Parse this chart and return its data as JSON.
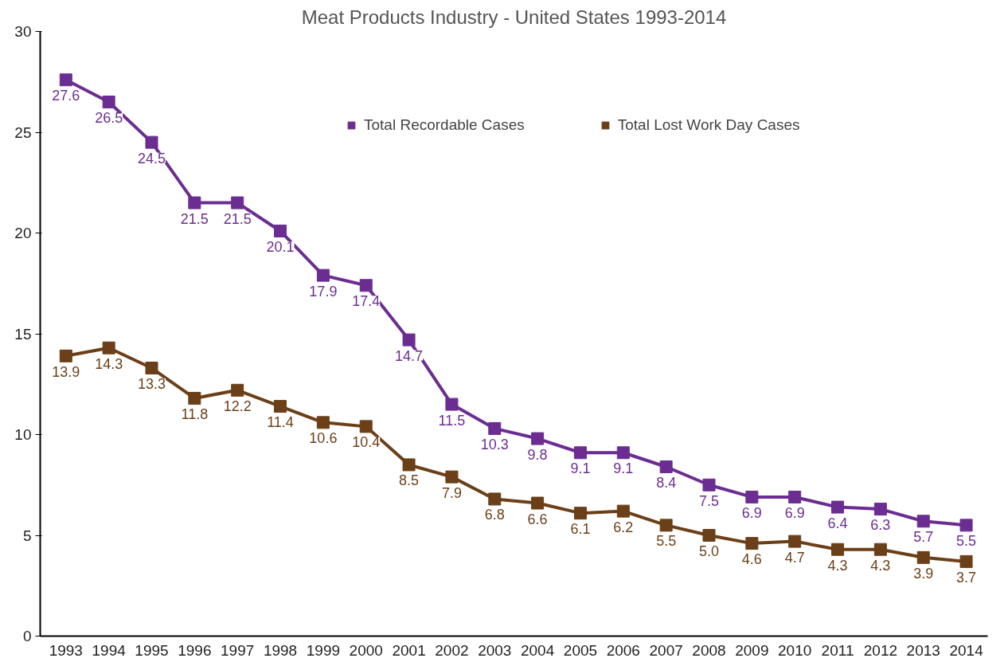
{
  "chart_data": {
    "type": "line",
    "title": "Meat Products Industry - United States 1993-2014",
    "categories": [
      "1993",
      "1994",
      "1995",
      "1996",
      "1997",
      "1998",
      "1999",
      "2000",
      "2001",
      "2002",
      "2003",
      "2004",
      "2005",
      "2006",
      "2007",
      "2008",
      "2009",
      "2010",
      "2011",
      "2012",
      "2013",
      "2014"
    ],
    "series": [
      {
        "name": "Total Recordable Cases",
        "color": "#6b2d91",
        "values": [
          27.6,
          26.5,
          24.5,
          21.5,
          21.5,
          20.1,
          17.9,
          17.4,
          14.7,
          11.5,
          10.3,
          9.8,
          9.1,
          9.1,
          8.4,
          7.5,
          6.9,
          6.9,
          6.4,
          6.3,
          5.7,
          5.5
        ],
        "value_labels": [
          "27.6",
          "26.5",
          "24.5",
          "21.5",
          "21.5",
          "20.1",
          "17.9",
          "17.4",
          "14.7",
          "11.5",
          "10.3",
          "9.8",
          "9.1",
          "9.1",
          "8.4",
          "7.5",
          "6.9",
          "6.9",
          "6.4",
          "6.3",
          "5.7",
          "5.5"
        ]
      },
      {
        "name": "Total Lost Work Day Cases",
        "color": "#6b3f17",
        "values": [
          13.9,
          14.3,
          13.3,
          11.8,
          12.2,
          11.4,
          10.6,
          10.4,
          8.5,
          7.9,
          6.8,
          6.6,
          6.1,
          6.2,
          5.5,
          5.0,
          4.6,
          4.7,
          4.3,
          4.3,
          3.9,
          3.7
        ],
        "value_labels": [
          "13.9",
          "14.3",
          "13.3",
          "11.8",
          "12.2",
          "11.4",
          "10.6",
          "10.4",
          "8.5",
          "7.9",
          "6.8",
          "6.6",
          "6.1",
          "6.2",
          "5.5",
          "5.0",
          "4.6",
          "4.7",
          "4.3",
          "4.3",
          "3.9",
          "3.7"
        ]
      }
    ],
    "ylim": [
      0,
      30
    ],
    "yticks": [
      0,
      5,
      10,
      15,
      20,
      25,
      30
    ],
    "grid": false,
    "legend": "top right",
    "marker": "square",
    "line_style": "solid"
  }
}
